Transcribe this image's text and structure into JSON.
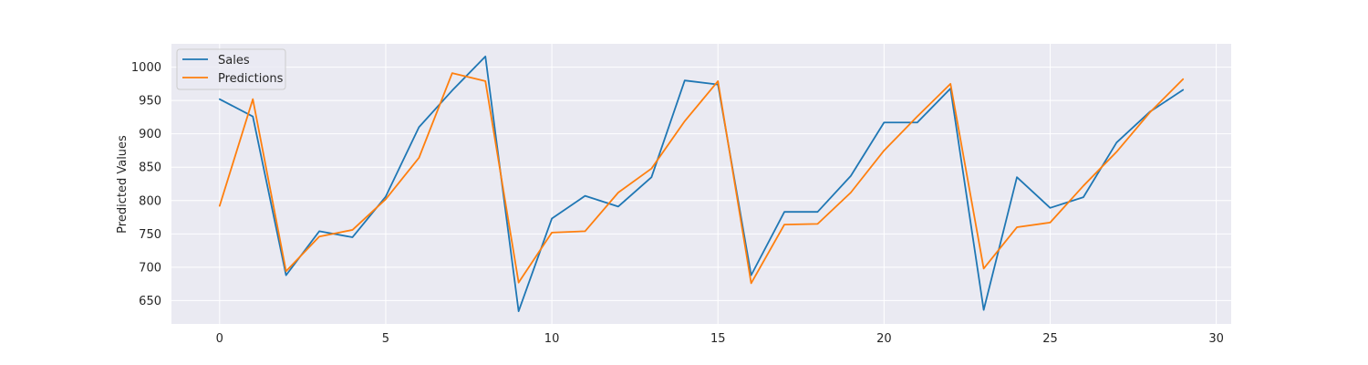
{
  "chart_data": {
    "type": "line",
    "title": "",
    "xlabel": "",
    "ylabel": "Predicted Values",
    "xlim": [
      -1.45,
      30.45
    ],
    "ylim": [
      615,
      1035
    ],
    "xticks": [
      0,
      5,
      10,
      15,
      20,
      25,
      30
    ],
    "yticks": [
      650,
      700,
      750,
      800,
      850,
      900,
      950,
      1000
    ],
    "grid": true,
    "legend_position": "top-left",
    "x": [
      0,
      1,
      2,
      3,
      4,
      5,
      6,
      7,
      8,
      9,
      10,
      11,
      12,
      13,
      14,
      15,
      16,
      17,
      18,
      19,
      20,
      21,
      22,
      23,
      24,
      25,
      26,
      27,
      28,
      29
    ],
    "series": [
      {
        "name": "Sales",
        "color": "#1f77b4",
        "values": [
          952,
          926,
          688,
          754,
          745,
          806,
          910,
          965,
          1016,
          634,
          773,
          807,
          791,
          835,
          980,
          974,
          688,
          783,
          783,
          837,
          917,
          917,
          968,
          636,
          835,
          789,
          805,
          887,
          933,
          966
        ]
      },
      {
        "name": "Predictions",
        "color": "#ff7f0e",
        "values": [
          792,
          952,
          694,
          746,
          756,
          802,
          864,
          991,
          979,
          677,
          752,
          754,
          812,
          848,
          919,
          979,
          676,
          764,
          765,
          812,
          875,
          926,
          975,
          698,
          760,
          767,
          822,
          873,
          932,
          982
        ]
      }
    ]
  }
}
